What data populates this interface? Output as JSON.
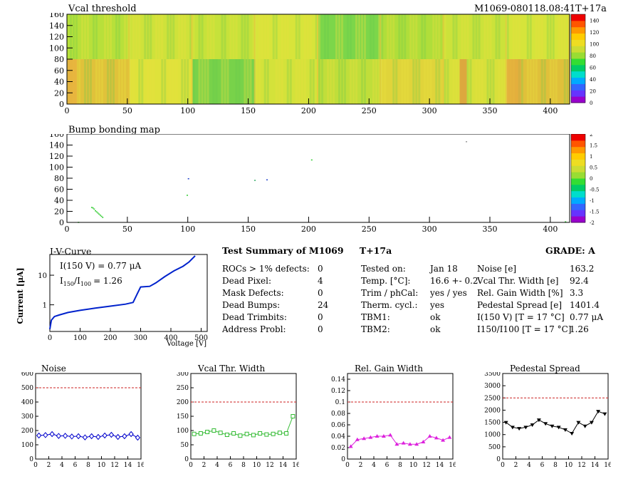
{
  "vcal_map": {
    "title": "Vcal threshold",
    "module_label": "M1069-080118.08:41T+17a",
    "xlim": [
      0,
      416
    ],
    "ylim": [
      0,
      160
    ],
    "x_ticks": [
      "0",
      "50",
      "100",
      "150",
      "200",
      "250",
      "300",
      "350",
      "400"
    ],
    "y_ticks": [
      "0",
      "20",
      "40",
      "60",
      "80",
      "100",
      "120",
      "140",
      "160"
    ],
    "z_ticks": [
      "0",
      "20",
      "40",
      "60",
      "80",
      "100",
      "120",
      "140"
    ]
  },
  "bump_map": {
    "title": "Bump bonding map",
    "xlim": [
      0,
      416
    ],
    "ylim": [
      0,
      160
    ],
    "x_ticks": [
      "0",
      "50",
      "100",
      "150",
      "200",
      "250",
      "300",
      "350",
      "400"
    ],
    "y_ticks": [
      "0",
      "20",
      "40",
      "60",
      "80",
      "100",
      "120",
      "140",
      "160"
    ],
    "z_ticks": [
      "-2",
      "-1.5",
      "-1",
      "-0.5",
      "0",
      "0.5",
      "1",
      "1.5",
      "2"
    ]
  },
  "iv": {
    "title": "I-V-Curve",
    "ylabel": "Current [μA]",
    "xlabel": "Voltage [V]",
    "anno1": "I(150 V) = 0.77 μA",
    "anno2_main": "I",
    "anno2_sub1": "150",
    "anno2_sep": "/I",
    "anno2_sub2": "100",
    "anno2_val": "=  1.26",
    "x_ticks": [
      "0",
      "100",
      "200",
      "300",
      "400",
      "500"
    ],
    "y_ticks": [
      "1",
      "10"
    ]
  },
  "summary": {
    "title": "Test Summary of M1069",
    "tag": "T+17a",
    "grade": "GRADE:  A",
    "col1": [
      {
        "label": "ROCs > 1% defects:",
        "value": "0"
      },
      {
        "label": "Dead Pixel:",
        "value": "4"
      },
      {
        "label": "Mask Defects:",
        "value": "0"
      },
      {
        "label": "Dead Bumps:",
        "value": "24"
      },
      {
        "label": "Dead Trimbits:",
        "value": "0"
      },
      {
        "label": "Address Probl:",
        "value": "0"
      }
    ],
    "col2": [
      {
        "label": "Tested on:",
        "value": "Jan 18"
      },
      {
        "label": "Temp. [°C]:",
        "value": "16.6 +- 0.2"
      },
      {
        "label": "Trim / phCal:",
        "value": "yes / yes"
      },
      {
        "label": "Therm. cycl.:",
        "value": "yes"
      },
      {
        "label": "TBM1:",
        "value": "ok"
      },
      {
        "label": "TBM2:",
        "value": "ok"
      }
    ],
    "col3": [
      {
        "label": "Noise [e]",
        "value": "163.2"
      },
      {
        "label": "Vcal Thr. Width [e]",
        "value": "92.4"
      },
      {
        "label": "Rel. Gain Width [%]",
        "value": "3.3"
      },
      {
        "label": "Pedestal Spread [e]",
        "value": "1401.4"
      },
      {
        "label": "I(150 V) [T = 17 °C]",
        "value": "0.77 μA"
      },
      {
        "label": "I150/I100  [T = 17 °C]",
        "value": "1.26"
      }
    ]
  },
  "chart_data": [
    {
      "type": "line",
      "title": "Noise",
      "x": [
        0,
        1,
        2,
        3,
        4,
        5,
        6,
        7,
        8,
        9,
        10,
        11,
        12,
        13,
        14,
        15
      ],
      "values": [
        165,
        168,
        175,
        162,
        163,
        158,
        160,
        152,
        160,
        155,
        165,
        170,
        155,
        160,
        175,
        150
      ],
      "last_value": 180,
      "xlim": [
        0,
        16
      ],
      "ylim": [
        0,
        600
      ],
      "y_ticks": [
        "0",
        "100",
        "200",
        "300",
        "400",
        "500",
        "600"
      ],
      "x_ticks": [
        "0",
        "2",
        "4",
        "6",
        "8",
        "10",
        "12",
        "14",
        "16"
      ],
      "threshold": 500,
      "color": "#0000cc",
      "marker": "diamond"
    },
    {
      "type": "line",
      "title": "Vcal Thr. Width",
      "x": [
        0,
        1,
        2,
        3,
        4,
        5,
        6,
        7,
        8,
        9,
        10,
        11,
        12,
        13,
        14,
        15
      ],
      "values": [
        88,
        90,
        95,
        100,
        92,
        85,
        90,
        82,
        88,
        84,
        90,
        86,
        88,
        92,
        90,
        150
      ],
      "xlim": [
        0,
        16
      ],
      "ylim": [
        0,
        300
      ],
      "y_ticks": [
        "0",
        "50",
        "100",
        "150",
        "200",
        "250",
        "300"
      ],
      "x_ticks": [
        "0",
        "2",
        "4",
        "6",
        "8",
        "10",
        "12",
        "14",
        "16"
      ],
      "threshold": 200,
      "color": "#33bb33",
      "marker": "square"
    },
    {
      "type": "line",
      "title": "Rel. Gain Width",
      "x": [
        0,
        1,
        2,
        3,
        4,
        5,
        6,
        7,
        8,
        9,
        10,
        11,
        12,
        13,
        14,
        15
      ],
      "values": [
        0.022,
        0.034,
        0.036,
        0.038,
        0.04,
        0.04,
        0.042,
        0.026,
        0.028,
        0.026,
        0.026,
        0.03,
        0.04,
        0.037,
        0.033,
        0.038
      ],
      "xlim": [
        0,
        16
      ],
      "ylim": [
        0,
        0.15
      ],
      "y_ticks": [
        "0",
        "0.02",
        "0.04",
        "0.06",
        "0.08",
        "0.1",
        "0.12",
        "0.14"
      ],
      "x_ticks": [
        "0",
        "2",
        "4",
        "6",
        "8",
        "10",
        "12",
        "14",
        "16"
      ],
      "threshold": 0.1,
      "color": "#dd22dd",
      "marker": "triangle"
    },
    {
      "type": "line",
      "title": "Pedestal Spread",
      "x": [
        0,
        1,
        2,
        3,
        4,
        5,
        6,
        7,
        8,
        9,
        10,
        11,
        12,
        13,
        14,
        15
      ],
      "values": [
        1500,
        1300,
        1250,
        1300,
        1400,
        1600,
        1450,
        1350,
        1300,
        1200,
        1050,
        1500,
        1350,
        1500,
        1950,
        1850
      ],
      "last_value": 1500,
      "xlim": [
        0,
        16
      ],
      "ylim": [
        0,
        3500
      ],
      "y_ticks": [
        "0",
        "500",
        "1000",
        "1500",
        "2000",
        "2500",
        "3000",
        "3500"
      ],
      "x_ticks": [
        "0",
        "2",
        "4",
        "6",
        "8",
        "10",
        "12",
        "14",
        "16"
      ],
      "threshold": 2500,
      "color": "#000000",
      "marker": "triangle-down"
    }
  ]
}
